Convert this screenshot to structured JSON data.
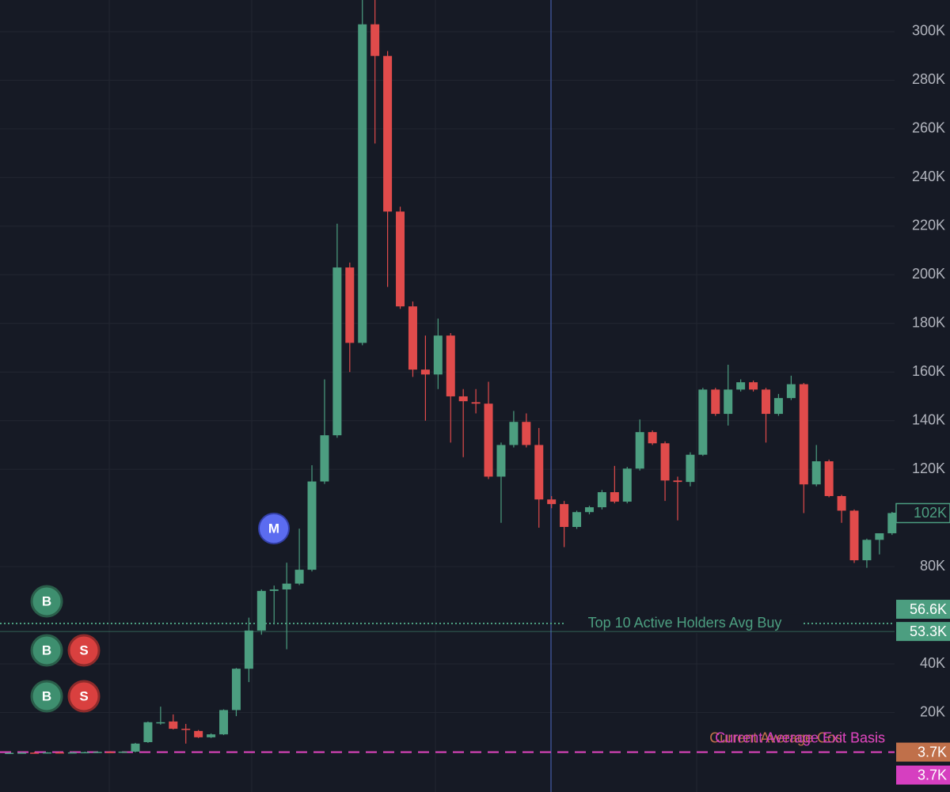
{
  "chart_data": {
    "type": "candlestick",
    "ylim": [
      -12700,
      313000
    ],
    "yticks": [
      {
        "value": 20000,
        "label": "20K"
      },
      {
        "value": 40000,
        "label": "40K"
      },
      {
        "value": 80000,
        "label": "80K"
      },
      {
        "value": 120000,
        "label": "120K"
      },
      {
        "value": 140000,
        "label": "140K"
      },
      {
        "value": 160000,
        "label": "160K"
      },
      {
        "value": 180000,
        "label": "180K"
      },
      {
        "value": 200000,
        "label": "200K"
      },
      {
        "value": 220000,
        "label": "220K"
      },
      {
        "value": 240000,
        "label": "240K"
      },
      {
        "value": 260000,
        "label": "260K"
      },
      {
        "value": 280000,
        "label": "280K"
      },
      {
        "value": 300000,
        "label": "300K"
      }
    ],
    "grid": true,
    "up_color": "#4c9e80",
    "down_color": "#e04b4b",
    "open": [
      3300,
      3400,
      3500,
      3400,
      3600,
      3500,
      3600,
      3700,
      3800,
      3700,
      3900,
      7800,
      15500,
      16300,
      13300,
      12400,
      9800,
      11000,
      21000,
      38000,
      53700,
      70000,
      70600,
      73000,
      78700,
      115000,
      134000,
      203000,
      172000,
      303000,
      290000,
      226000,
      187000,
      161000,
      159000,
      175000,
      150000,
      147600,
      147000,
      117000,
      130000,
      139500,
      130000,
      107600,
      105700,
      96300,
      102400,
      104400,
      110600,
      106700,
      120300,
      135300,
      130700,
      115400,
      114800,
      126000,
      152800,
      142800,
      152800,
      155800,
      152800,
      142800,
      149300,
      155000,
      113800,
      123300,
      109000,
      103000,
      82600,
      91000,
      93700
    ],
    "high": [
      3600,
      3700,
      3800,
      3700,
      3900,
      3800,
      3900,
      4000,
      4100,
      4000,
      7500,
      16300,
      22400,
      19200,
      15300,
      12800,
      11400,
      21300,
      38300,
      59000,
      70600,
      72200,
      81600,
      95600,
      121700,
      157000,
      221000,
      205000,
      313000,
      313000,
      292000,
      228000,
      189000,
      175000,
      182000,
      176000,
      153000,
      153000,
      156000,
      131000,
      144000,
      143000,
      137000,
      109000,
      107000,
      103000,
      105000,
      111500,
      121400,
      121000,
      140500,
      136000,
      131500,
      117000,
      127000,
      153500,
      153500,
      163000,
      157000,
      156500,
      153500,
      151000,
      158500,
      155500,
      130000,
      124000,
      109500,
      103500,
      91500,
      93700,
      102500
    ],
    "low": [
      3000,
      3100,
      3100,
      3100,
      3200,
      3200,
      3300,
      3400,
      3400,
      3400,
      3600,
      7500,
      15000,
      13000,
      7200,
      9500,
      9500,
      10700,
      18500,
      32500,
      52000,
      56200,
      46000,
      72400,
      78000,
      114000,
      133000,
      160000,
      171000,
      254000,
      195000,
      186000,
      158000,
      140000,
      153000,
      131000,
      125000,
      143000,
      116000,
      98000,
      129000,
      129000,
      96000,
      104000,
      88000,
      95500,
      101500,
      103500,
      106000,
      106000,
      119500,
      130000,
      107000,
      99000,
      113000,
      125500,
      142000,
      138000,
      152000,
      152000,
      131000,
      142000,
      148500,
      102000,
      113000,
      108500,
      98000,
      81500,
      79500,
      85000,
      93000
    ],
    "close": [
      3400,
      3500,
      3400,
      3600,
      3500,
      3600,
      3700,
      3800,
      3700,
      3900,
      7200,
      16000,
      16000,
      13300,
      13000,
      9800,
      11000,
      21000,
      38000,
      53700,
      70000,
      70600,
      73000,
      78700,
      115000,
      134000,
      203000,
      172000,
      303000,
      290000,
      226000,
      187000,
      161000,
      159000,
      175000,
      150000,
      148000,
      147000,
      117000,
      130000,
      139500,
      130000,
      107600,
      105700,
      96300,
      102400,
      104400,
      110600,
      106700,
      120300,
      135300,
      130700,
      115400,
      114800,
      126000,
      152800,
      142800,
      152800,
      155800,
      152800,
      142800,
      149300,
      155000,
      113800,
      123300,
      109000,
      103000,
      82600,
      91000,
      93700,
      102000
    ],
    "last_price": {
      "value": 102000,
      "label": "102K"
    },
    "levels": [
      {
        "label": "Top 10 Active Holders Avg Buy",
        "value": 56600,
        "value_label": "56.6K",
        "color": "#4c9e80"
      },
      {
        "value": 53300,
        "value_label": "53.3K",
        "color": "#4c9e80"
      },
      {
        "label": "Current Average Cost Basis",
        "value": 3700,
        "value_label": "3.7K",
        "color": "#c0704a"
      },
      {
        "label": "Current Average Exit Basis",
        "value": 3700,
        "value_label": "3.7K",
        "color": "#d63fc0"
      }
    ]
  },
  "markers": [
    {
      "label": "M"
    },
    {
      "label": "B"
    },
    {
      "label": "B"
    },
    {
      "label": "S"
    },
    {
      "label": "B"
    },
    {
      "label": "S"
    }
  ]
}
